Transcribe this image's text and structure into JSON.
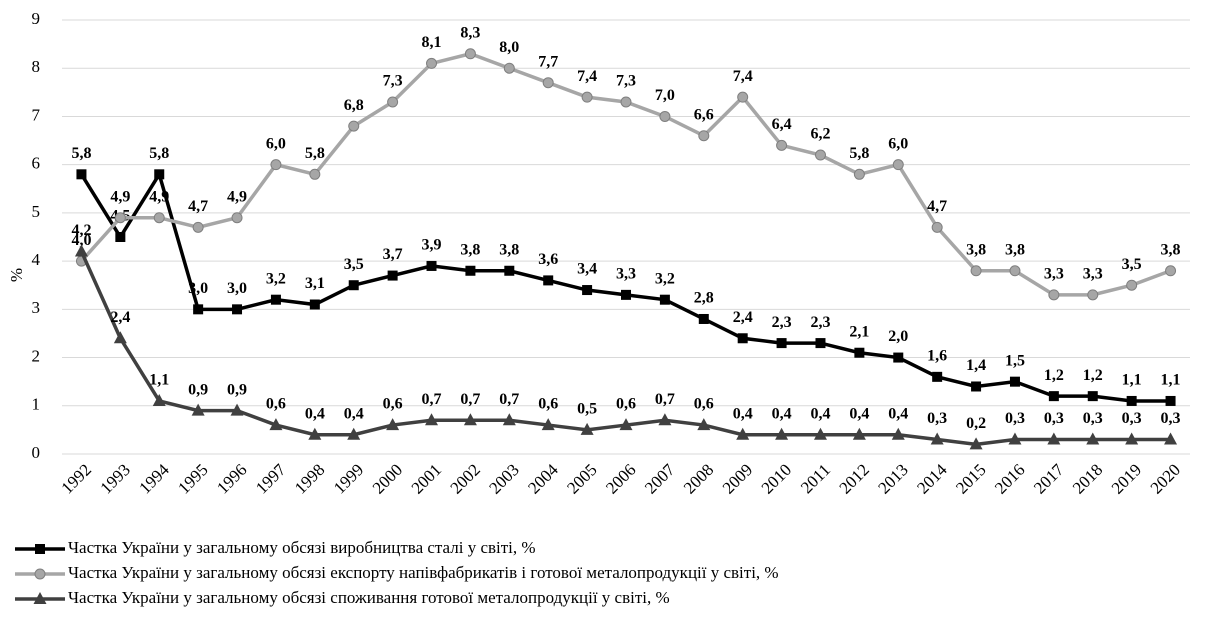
{
  "chart_data": {
    "type": "line",
    "y_label": "%",
    "categories": [
      "1992",
      "1993",
      "1994",
      "1995",
      "1996",
      "1997",
      "1998",
      "1999",
      "2000",
      "2001",
      "2002",
      "2003",
      "2004",
      "2005",
      "2006",
      "2007",
      "2008",
      "2009",
      "2010",
      "2011",
      "2012",
      "2013",
      "2014",
      "2015",
      "2016",
      "2017",
      "2018",
      "2019",
      "2020"
    ],
    "ylim": [
      0,
      9
    ],
    "yticks": [
      0,
      1,
      2,
      3,
      4,
      5,
      6,
      7,
      8,
      9
    ],
    "grid": true,
    "series": [
      {
        "name": "Частка України у загальному обсязі виробництва сталі у світі, %",
        "color": "#000000",
        "marker": "square",
        "values": [
          5.8,
          4.5,
          5.8,
          3.0,
          3.0,
          3.2,
          3.1,
          3.5,
          3.7,
          3.9,
          3.8,
          3.8,
          3.6,
          3.4,
          3.3,
          3.2,
          2.8,
          2.4,
          2.3,
          2.3,
          2.1,
          2.0,
          1.6,
          1.4,
          1.5,
          1.2,
          1.2,
          1.1,
          1.1
        ],
        "value_labels": [
          "5,8",
          "4,5",
          "5,8",
          "3,0",
          "3,0",
          "3,2",
          "3,1",
          "3,5",
          "3,7",
          "3,9",
          "3,8",
          "3,8",
          "3,6",
          "3,4",
          "3,3",
          "3,2",
          "2,8",
          "2,4",
          "2,3",
          "2,3",
          "2,1",
          "2,0",
          "1,6",
          "1,4",
          "1,5",
          "1,2",
          "1,2",
          "1,1",
          "1,1"
        ]
      },
      {
        "name": "Частка України у загальному обсязі експорту напівфабрикатів і готової металопродукції у світі, %",
        "color": "#a6a6a6",
        "marker": "circle",
        "values": [
          4.0,
          4.9,
          4.9,
          4.7,
          4.9,
          6.0,
          5.8,
          6.8,
          7.3,
          8.1,
          8.3,
          8.0,
          7.7,
          7.4,
          7.3,
          7.0,
          6.6,
          7.4,
          6.4,
          6.2,
          5.8,
          6.0,
          4.7,
          3.8,
          3.8,
          3.3,
          3.3,
          3.5,
          3.8
        ],
        "value_labels": [
          "4,0",
          "4,9",
          "4,9",
          "4,7",
          "4,9",
          "6,0",
          "5,8",
          "6,8",
          "7,3",
          "8,1",
          "8,3",
          "8,0",
          "7,7",
          "7,4",
          "7,3",
          "7,0",
          "6,6",
          "7,4",
          "6,4",
          "6,2",
          "5,8",
          "6,0",
          "4,7",
          "3,8",
          "3,8",
          "3,3",
          "3,3",
          "3,5",
          "3,8"
        ]
      },
      {
        "name": "Частка України у загальному обсязі споживання готової металопродукції у світі, %",
        "color": "#404040",
        "marker": "triangle",
        "values": [
          4.2,
          2.4,
          1.1,
          0.9,
          0.9,
          0.6,
          0.4,
          0.4,
          0.6,
          0.7,
          0.7,
          0.7,
          0.6,
          0.5,
          0.6,
          0.7,
          0.6,
          0.4,
          0.4,
          0.4,
          0.4,
          0.4,
          0.3,
          0.2,
          0.3,
          0.3,
          0.3,
          0.3,
          0.3
        ],
        "value_labels": [
          "4,2",
          "2,4",
          "1,1",
          "0,9",
          "0,9",
          "0,6",
          "0,4",
          "0,4",
          "0,6",
          "0,7",
          "0,7",
          "0,7",
          "0,6",
          "0,5",
          "0,6",
          "0,7",
          "0,6",
          "0,4",
          "0,4",
          "0,4",
          "0,4",
          "0,4",
          "0,3",
          "0,2",
          "0,3",
          "0,3",
          "0,3",
          "0,3",
          "0,3"
        ]
      }
    ]
  }
}
